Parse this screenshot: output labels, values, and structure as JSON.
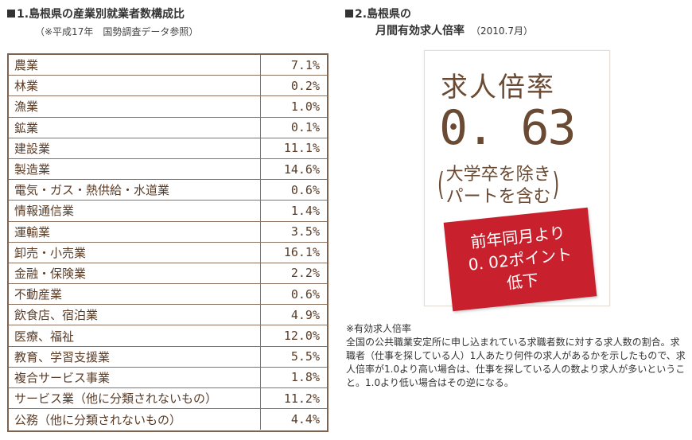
{
  "left": {
    "title": "1.島根県の産業別就業者数構成比",
    "subtitle": "（※平成17年　国勢調査データ参照）",
    "rows": [
      {
        "name": "農業",
        "value": "7.1%"
      },
      {
        "name": "林業",
        "value": "0.2%"
      },
      {
        "name": "漁業",
        "value": "1.0%"
      },
      {
        "name": "鉱業",
        "value": "0.1%"
      },
      {
        "name": "建設業",
        "value": "11.1%"
      },
      {
        "name": "製造業",
        "value": "14.6%"
      },
      {
        "name": "電気・ガス・熱供給・水道業",
        "value": "0.6%"
      },
      {
        "name": "情報通信業",
        "value": "1.4%"
      },
      {
        "name": "運輸業",
        "value": "3.5%"
      },
      {
        "name": "卸売・小売業",
        "value": "16.1%"
      },
      {
        "name": "金融・保険業",
        "value": "2.2%"
      },
      {
        "name": "不動産業",
        "value": "0.6%"
      },
      {
        "name": "飲食店、宿泊業",
        "value": "4.9%"
      },
      {
        "name": "医療、福祉",
        "value": "12.0%"
      },
      {
        "name": "教育、学習支援業",
        "value": "5.5%"
      },
      {
        "name": "複合サービス事業",
        "value": "1.8%"
      },
      {
        "name": "サービス業（他に分類されないもの）",
        "value": "11.2%"
      },
      {
        "name": "公務（他に分類されないもの）",
        "value": "4.4%"
      }
    ]
  },
  "right": {
    "title_line1": "2.島根県の",
    "title_line2": "月間有効求人倍率",
    "title_date": "（2010.7月）",
    "card": {
      "heading": "求人倍率",
      "value": "0. 63",
      "paren_line1": "大学卒を除き",
      "paren_line2": "パートを含む"
    },
    "badge": {
      "line1": "前年同月より",
      "line2": "0. 02ポイント",
      "line3": "低下"
    },
    "note": {
      "heading": "※有効求人倍率",
      "body": "全国の公共職業安定所に申し込まれている求職者数に対する求人数の割合。求職者（仕事を探している人）1人あたり何件の求人があるかを示したもので、求人倍率が1.0より高い場合は、仕事を探している人の数より求人が多いということ。1.0より低い場合はその逆になる。"
    }
  },
  "colors": {
    "table_border": "#7d6451",
    "table_text": "#5a3d28",
    "card_text": "#6b4a33",
    "badge_bg": "#c8202c"
  }
}
